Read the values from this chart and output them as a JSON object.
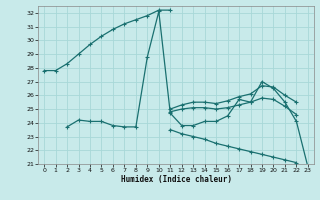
{
  "title": "",
  "xlabel": "Humidex (Indice chaleur)",
  "bg_color": "#c8eaea",
  "grid_color": "#a8d8d8",
  "line_color": "#1a7070",
  "xlim": [
    -0.5,
    23.5
  ],
  "ylim": [
    21,
    32.5
  ],
  "yticks": [
    21,
    22,
    23,
    24,
    25,
    26,
    27,
    28,
    29,
    30,
    31,
    32
  ],
  "xticks": [
    0,
    1,
    2,
    3,
    4,
    5,
    6,
    7,
    8,
    9,
    10,
    11,
    12,
    13,
    14,
    15,
    16,
    17,
    18,
    19,
    20,
    21,
    22,
    23
  ],
  "series": [
    {
      "x": [
        0,
        1,
        2,
        3,
        4,
        5,
        6,
        7,
        8,
        9,
        10,
        11
      ],
      "y": [
        27.8,
        27.8,
        28.3,
        29.0,
        29.7,
        30.3,
        30.8,
        31.2,
        31.5,
        31.8,
        32.2,
        32.2
      ]
    },
    {
      "x": [
        2,
        3,
        4,
        5,
        6,
        7,
        8,
        9,
        10,
        11,
        12,
        13,
        14,
        15,
        16,
        17,
        18,
        19,
        20,
        21,
        22,
        23
      ],
      "y": [
        23.7,
        24.2,
        24.1,
        24.1,
        23.8,
        23.7,
        23.7,
        28.8,
        32.1,
        24.7,
        23.8,
        23.8,
        24.1,
        24.1,
        24.5,
        25.7,
        25.5,
        27.0,
        26.5,
        25.5,
        24.1,
        20.8
      ]
    },
    {
      "x": [
        11,
        12,
        13,
        14,
        15,
        16,
        17,
        18,
        19,
        20,
        21,
        22
      ],
      "y": [
        25.0,
        25.3,
        25.5,
        25.5,
        25.4,
        25.6,
        25.9,
        26.1,
        26.7,
        26.6,
        26.0,
        25.5
      ]
    },
    {
      "x": [
        11,
        12,
        13,
        14,
        15,
        16,
        17,
        18,
        19,
        20,
        21,
        22
      ],
      "y": [
        24.8,
        25.0,
        25.1,
        25.1,
        25.0,
        25.1,
        25.3,
        25.5,
        25.8,
        25.7,
        25.2,
        24.6
      ]
    },
    {
      "x": [
        11,
        12,
        13,
        14,
        15,
        16,
        17,
        18,
        19,
        20,
        21,
        22
      ],
      "y": [
        23.5,
        23.2,
        23.0,
        22.8,
        22.5,
        22.3,
        22.1,
        21.9,
        21.7,
        21.5,
        21.3,
        21.1
      ]
    }
  ]
}
